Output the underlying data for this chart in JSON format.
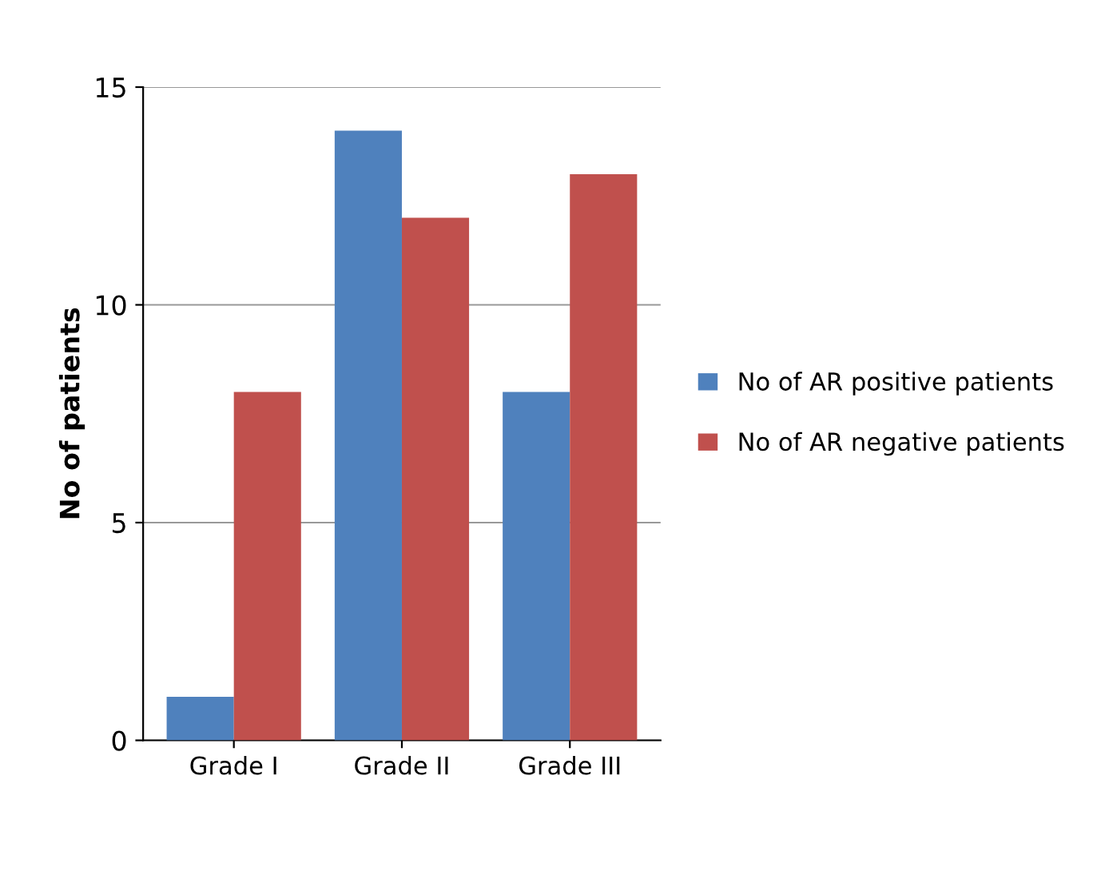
{
  "chart_data": {
    "type": "bar",
    "ylabel": "No of patients",
    "categories": [
      "Grade I",
      "Grade II",
      "Grade III"
    ],
    "series": [
      {
        "name": "No of AR positive patients",
        "color": "#4f81bd",
        "values": [
          1,
          14,
          8
        ]
      },
      {
        "name": "No of AR negative patients",
        "color": "#c0504d",
        "values": [
          8,
          12,
          13
        ]
      }
    ],
    "ylim": [
      0,
      15
    ],
    "yticks": [
      0,
      5,
      10,
      15
    ],
    "grid": "y",
    "legend": "right"
  }
}
